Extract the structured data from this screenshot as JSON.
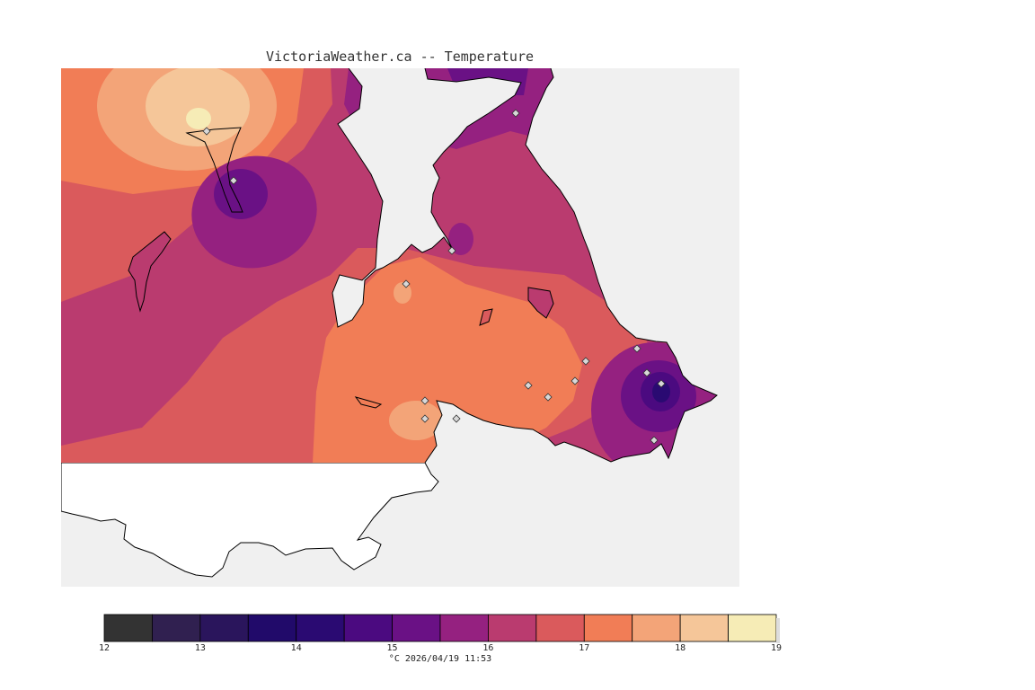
{
  "title": "VictoriaWeather.ca -- Temperature",
  "footer": "°C 2026/04/19 11:53",
  "legend": {
    "ticks": [
      "12",
      "13",
      "14",
      "15",
      "16",
      "17",
      "18",
      "19"
    ],
    "bins": [
      {
        "range": [
          12.0,
          12.5
        ],
        "color": "#333333"
      },
      {
        "range": [
          12.5,
          13.0
        ],
        "color": "#302050"
      },
      {
        "range": [
          13.0,
          13.5
        ],
        "color": "#2a155c"
      },
      {
        "range": [
          13.5,
          14.0
        ],
        "color": "#210a6a"
      },
      {
        "range": [
          14.0,
          14.5
        ],
        "color": "#2a0a72"
      },
      {
        "range": [
          14.5,
          15.0
        ],
        "color": "#4b0a80"
      },
      {
        "range": [
          15.0,
          15.5
        ],
        "color": "#6a1185"
      },
      {
        "range": [
          15.5,
          16.0
        ],
        "color": "#952180"
      },
      {
        "range": [
          16.0,
          16.5
        ],
        "color": "#ba3b6f"
      },
      {
        "range": [
          16.5,
          17.0
        ],
        "color": "#da5a5c"
      },
      {
        "range": [
          17.0,
          17.5
        ],
        "color": "#f17d56"
      },
      {
        "range": [
          17.5,
          18.0
        ],
        "color": "#f3a478"
      },
      {
        "range": [
          18.0,
          18.5
        ],
        "color": "#f5c699"
      },
      {
        "range": [
          18.5,
          19.0
        ],
        "color": "#f6ecb6"
      }
    ]
  },
  "map": {
    "water_color": "#f0f0f0",
    "outside_land_color": "#ffffff",
    "outline_color": "#000000",
    "station_count": 16
  }
}
